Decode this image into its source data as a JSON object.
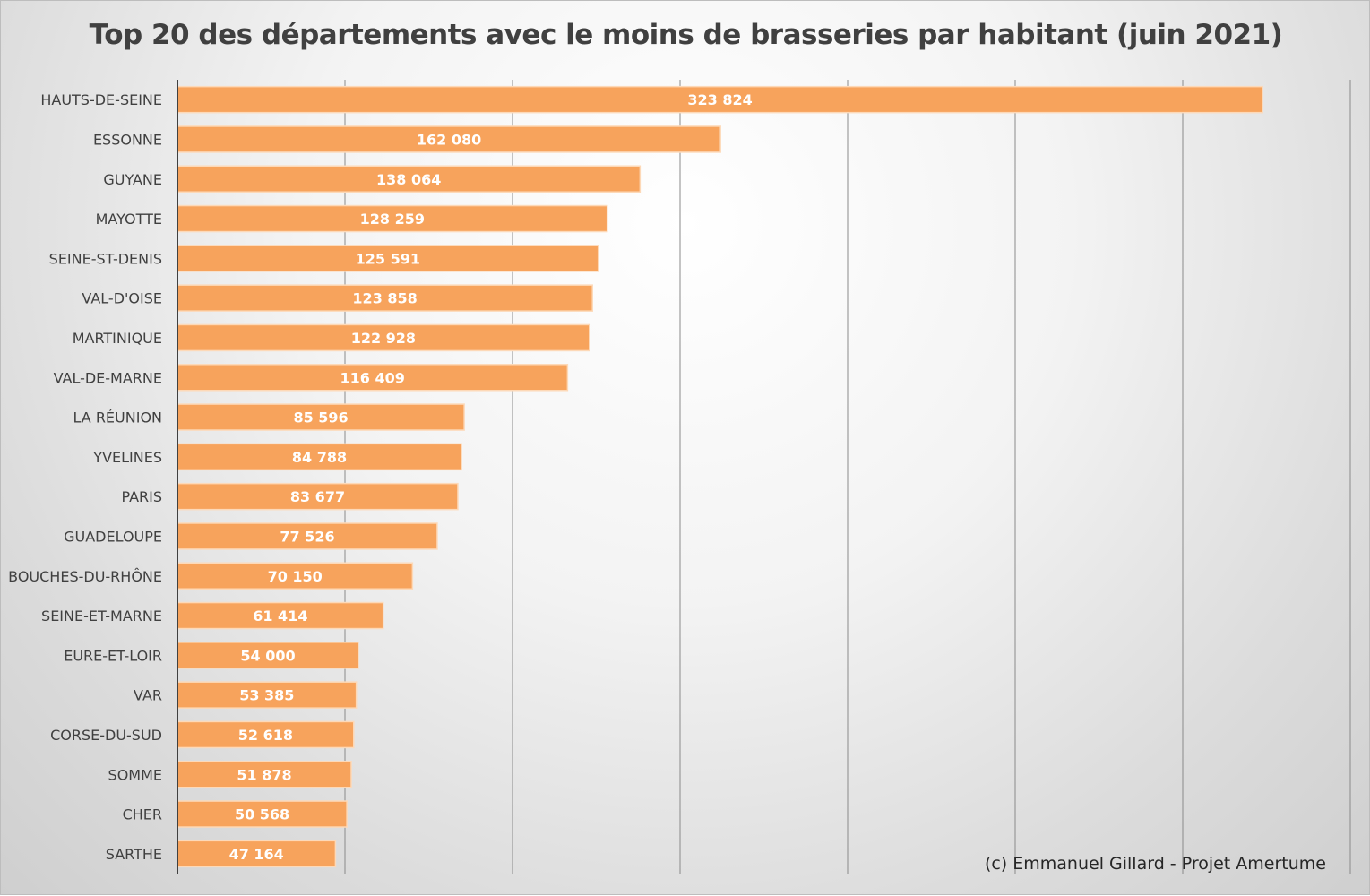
{
  "chart_data": {
    "type": "bar",
    "orientation": "horizontal",
    "title": "Top 20 des départements avec le moins de brasseries par habitant (juin 2021)",
    "categories": [
      "HAUTS-DE-SEINE",
      "ESSONNE",
      "GUYANE",
      "MAYOTTE",
      "SEINE-ST-DENIS",
      "VAL-D'OISE",
      "MARTINIQUE",
      "VAL-DE-MARNE",
      "LA RÉUNION",
      "YVELINES",
      "PARIS",
      "GUADELOUPE",
      "BOUCHES-DU-RHÔNE",
      "SEINE-ET-MARNE",
      "EURE-ET-LOIR",
      "VAR",
      "CORSE-DU-SUD",
      "SOMME",
      "CHER",
      "SARTHE"
    ],
    "values": [
      323824,
      162080,
      138064,
      128259,
      125591,
      123858,
      122928,
      116409,
      85596,
      84788,
      83677,
      77526,
      70150,
      61414,
      54000,
      53385,
      52618,
      51878,
      50568,
      47164
    ],
    "value_labels": [
      "323 824",
      "162 080",
      "138 064",
      "128 259",
      "125 591",
      "123 858",
      "122 928",
      "116 409",
      "85 596",
      "84 788",
      "83 677",
      "77 526",
      "70 150",
      "61 414",
      "54 000",
      "53 385",
      "52 618",
      "51 878",
      "50 568",
      "47 164"
    ],
    "xlim": [
      0,
      350000
    ],
    "grid": true,
    "bar_color": "#f7a35c",
    "bar_border_color": "#fdd9b8",
    "credit": "(c) Emmanuel Gillard - Projet Amertume"
  }
}
